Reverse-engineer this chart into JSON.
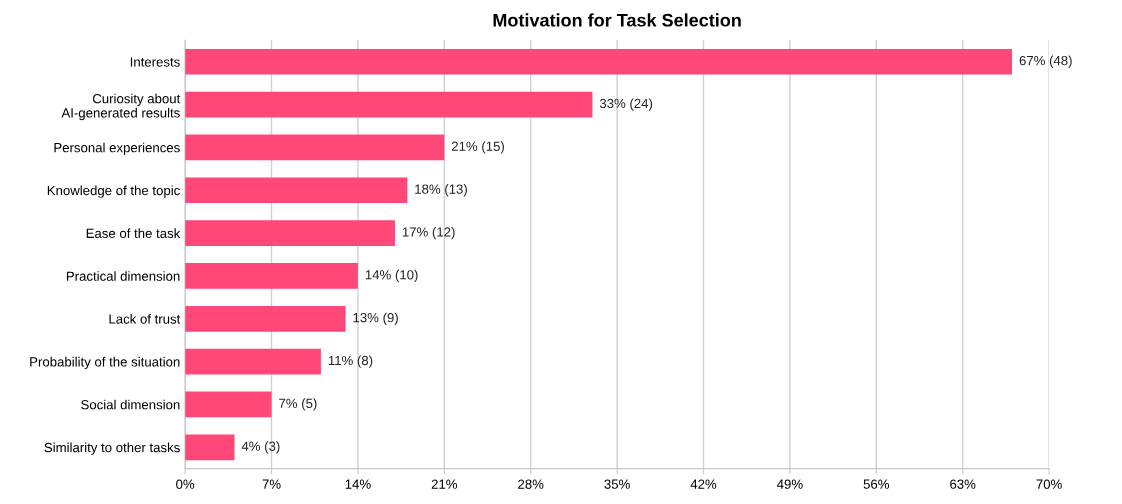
{
  "chart_data": {
    "type": "bar",
    "orientation": "horizontal",
    "title": "Motivation for Task Selection",
    "categories": [
      "Interests",
      "Curiosity about AI-generated results",
      "Personal experiences",
      "Knowledge of the topic",
      "Ease of the task",
      "Practical dimension",
      "Lack of trust",
      "Probability of the situation",
      "Social dimension",
      "Similarity to other tasks"
    ],
    "values": [
      67,
      33,
      21,
      18,
      17,
      14,
      13,
      11,
      7,
      4
    ],
    "value_labels": [
      "67% (48)",
      "33% (24)",
      "21% (15)",
      "18% (13)",
      "17% (12)",
      "14% (10)",
      "13% (9)",
      "11% (8)",
      "7% (5)",
      "4% (3)"
    ],
    "color": "#ff4778",
    "xlim": [
      0,
      70
    ],
    "xticks": [
      {
        "value": 0,
        "label": "0%"
      },
      {
        "value": 7,
        "label": "7%"
      },
      {
        "value": 14,
        "label": "14%"
      },
      {
        "value": 21,
        "label": "21%"
      },
      {
        "value": 28,
        "label": "28%"
      },
      {
        "value": 35,
        "label": "35%"
      },
      {
        "value": 42,
        "label": "42%"
      },
      {
        "value": 49,
        "label": "49%"
      },
      {
        "value": 56,
        "label": "56%"
      },
      {
        "value": 63,
        "label": "63%"
      },
      {
        "value": 70,
        "label": "70%"
      }
    ],
    "grid": "x",
    "legend": false
  }
}
